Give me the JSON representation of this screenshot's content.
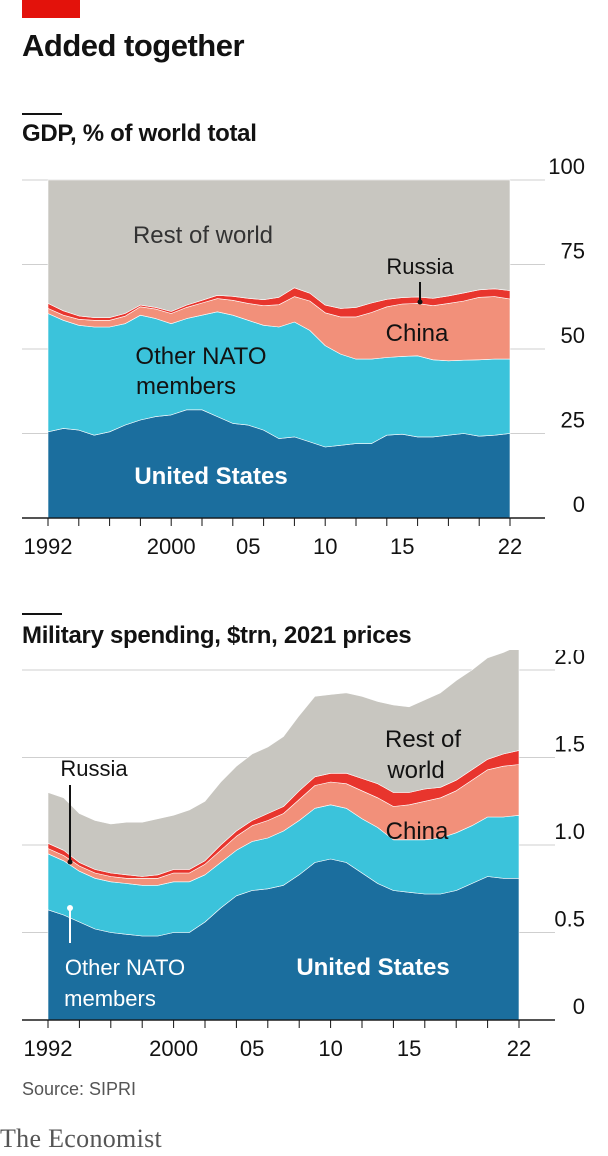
{
  "header": {
    "title": "Added together",
    "source": "Source: SIPRI",
    "brand": "The Economist"
  },
  "colors": {
    "united_states": "#1b6e9e",
    "other_nato": "#3bc3db",
    "china": "#f2907a",
    "russia": "#e8352d",
    "rest_of_world": "#c8c6c0",
    "accent": "#e3120b",
    "grid": "#cfcfcf"
  },
  "chart_data": [
    {
      "type": "area",
      "stacked": true,
      "title": "GDP, % of world total",
      "x": [
        1992,
        1993,
        1994,
        1995,
        1996,
        1997,
        1998,
        1999,
        2000,
        2001,
        2002,
        2003,
        2004,
        2005,
        2006,
        2007,
        2008,
        2009,
        2010,
        2011,
        2012,
        2013,
        2014,
        2015,
        2016,
        2017,
        2018,
        2019,
        2020,
        2021,
        2022
      ],
      "ylim": [
        0,
        100
      ],
      "yticks": [
        0,
        25,
        50,
        75,
        100
      ],
      "xticks": [
        {
          "value": 1992,
          "label": "1992"
        },
        {
          "value": 2000,
          "label": "2000"
        },
        {
          "value": 2005,
          "label": "05"
        },
        {
          "value": 2010,
          "label": "10"
        },
        {
          "value": 2015,
          "label": "15"
        },
        {
          "value": 2022,
          "label": "22"
        }
      ],
      "series": [
        {
          "key": "united_states",
          "name": "United States",
          "values": [
            25.5,
            26.5,
            26,
            24.5,
            25.5,
            27.5,
            29,
            30,
            30.5,
            32,
            32,
            30,
            28,
            27.5,
            26,
            23.5,
            24,
            22.5,
            21,
            21.5,
            22,
            22,
            24.5,
            24.8,
            24,
            24,
            24.5,
            25,
            24.2,
            24.5,
            25
          ]
        },
        {
          "key": "other_nato",
          "name": "Other NATO members",
          "values": [
            35,
            32,
            31,
            32,
            31,
            30,
            31,
            29,
            27,
            27,
            28,
            31,
            32,
            31,
            31,
            33,
            34,
            33,
            30,
            27,
            25,
            25,
            23,
            23,
            24,
            22.8,
            22,
            21.7,
            22.6,
            22.5,
            22
          ]
        },
        {
          "key": "china",
          "name": "China",
          "values": [
            1.5,
            1.5,
            1.8,
            2,
            2,
            2.2,
            2.5,
            2.8,
            3,
            3.3,
            3.6,
            3.9,
            4.4,
            5,
            5.8,
            6.6,
            7.5,
            8.7,
            9.7,
            11,
            12.5,
            13.8,
            15,
            15.5,
            15.5,
            16,
            17,
            17.5,
            18.5,
            18.5,
            17.8
          ]
        },
        {
          "key": "russia",
          "name": "Russia",
          "values": [
            1.5,
            1.3,
            1,
            0.8,
            0.8,
            0.8,
            0.5,
            0.5,
            0.6,
            0.7,
            0.8,
            1,
            1.2,
            1.5,
            1.8,
            2.2,
            2.6,
            2.3,
            2.3,
            2.5,
            2.8,
            2.8,
            2.2,
            1.9,
            1.9,
            2.2,
            2.2,
            2.4,
            2.2,
            2.3,
            2.5
          ]
        },
        {
          "key": "rest_of_world",
          "name": "Rest of world",
          "values": [
            36.5,
            38.7,
            40.2,
            40.7,
            40.7,
            39.5,
            37,
            37.7,
            38.9,
            37,
            35.6,
            34.1,
            34.4,
            35,
            35.4,
            34.7,
            31.9,
            33.5,
            37,
            38,
            37.7,
            36.4,
            35.3,
            34.8,
            34.6,
            35,
            34.3,
            33.4,
            32.5,
            32.2,
            32.7
          ]
        }
      ],
      "labels": [
        {
          "key": "rest_of_world",
          "lines": [
            "Rest of world"
          ]
        },
        {
          "key": "other_nato",
          "lines": [
            "Other NATO",
            "members"
          ]
        },
        {
          "key": "united_states",
          "lines": [
            "United States"
          ]
        },
        {
          "key": "china",
          "lines": [
            "China"
          ]
        },
        {
          "key": "russia",
          "lines": [
            "Russia"
          ]
        }
      ]
    },
    {
      "type": "area",
      "stacked": true,
      "title": "Military spending, $trn, 2021 prices",
      "x": [
        1992,
        1993,
        1994,
        1995,
        1996,
        1997,
        1998,
        1999,
        2000,
        2001,
        2002,
        2003,
        2004,
        2005,
        2006,
        2007,
        2008,
        2009,
        2010,
        2011,
        2012,
        2013,
        2014,
        2015,
        2016,
        2017,
        2018,
        2019,
        2020,
        2021,
        2022
      ],
      "ylim": [
        0,
        2.0
      ],
      "yticks": [
        0,
        0.5,
        1.0,
        1.5,
        2.0
      ],
      "ytick_labels": [
        "0",
        "0.5",
        "1.0",
        "1.5",
        "2.0"
      ],
      "xticks": [
        {
          "value": 1992,
          "label": "1992"
        },
        {
          "value": 2000,
          "label": "2000"
        },
        {
          "value": 2005,
          "label": "05"
        },
        {
          "value": 2010,
          "label": "10"
        },
        {
          "value": 2015,
          "label": "15"
        },
        {
          "value": 2022,
          "label": "22"
        }
      ],
      "series": [
        {
          "key": "united_states",
          "name": "United States",
          "values": [
            0.63,
            0.6,
            0.56,
            0.52,
            0.5,
            0.49,
            0.48,
            0.48,
            0.5,
            0.5,
            0.56,
            0.64,
            0.71,
            0.74,
            0.75,
            0.77,
            0.83,
            0.9,
            0.92,
            0.9,
            0.84,
            0.78,
            0.74,
            0.73,
            0.72,
            0.72,
            0.74,
            0.78,
            0.82,
            0.81,
            0.81
          ]
        },
        {
          "key": "other_nato",
          "name": "Other NATO members",
          "values": [
            0.32,
            0.31,
            0.29,
            0.29,
            0.29,
            0.29,
            0.29,
            0.29,
            0.29,
            0.29,
            0.27,
            0.26,
            0.26,
            0.28,
            0.29,
            0.31,
            0.31,
            0.31,
            0.31,
            0.31,
            0.31,
            0.32,
            0.29,
            0.3,
            0.31,
            0.32,
            0.33,
            0.33,
            0.34,
            0.35,
            0.36
          ]
        },
        {
          "key": "china",
          "name": "China",
          "values": [
            0.03,
            0.03,
            0.03,
            0.03,
            0.03,
            0.03,
            0.04,
            0.04,
            0.05,
            0.05,
            0.06,
            0.07,
            0.08,
            0.09,
            0.1,
            0.1,
            0.12,
            0.13,
            0.13,
            0.14,
            0.16,
            0.17,
            0.19,
            0.2,
            0.22,
            0.23,
            0.24,
            0.26,
            0.27,
            0.29,
            0.29
          ]
        },
        {
          "key": "russia",
          "name": "Russia",
          "values": [
            0.03,
            0.03,
            0.02,
            0.02,
            0.02,
            0.02,
            0.01,
            0.02,
            0.02,
            0.02,
            0.02,
            0.03,
            0.03,
            0.03,
            0.04,
            0.04,
            0.05,
            0.05,
            0.05,
            0.06,
            0.07,
            0.08,
            0.08,
            0.07,
            0.07,
            0.06,
            0.06,
            0.06,
            0.06,
            0.07,
            0.08
          ]
        },
        {
          "key": "rest_of_world",
          "name": "Rest of world",
          "values": [
            0.29,
            0.3,
            0.28,
            0.28,
            0.28,
            0.3,
            0.31,
            0.32,
            0.31,
            0.34,
            0.34,
            0.36,
            0.37,
            0.38,
            0.38,
            0.4,
            0.43,
            0.46,
            0.45,
            0.46,
            0.47,
            0.47,
            0.5,
            0.49,
            0.51,
            0.54,
            0.57,
            0.57,
            0.58,
            0.58,
            0.6
          ]
        }
      ],
      "labels": [
        {
          "key": "rest_of_world",
          "lines": [
            "Rest of",
            "world"
          ]
        },
        {
          "key": "china",
          "lines": [
            "China"
          ]
        },
        {
          "key": "united_states",
          "lines": [
            "United States"
          ]
        },
        {
          "key": "other_nato",
          "lines": [
            "Other NATO",
            "members"
          ]
        },
        {
          "key": "russia",
          "lines": [
            "Russia"
          ]
        }
      ]
    }
  ]
}
